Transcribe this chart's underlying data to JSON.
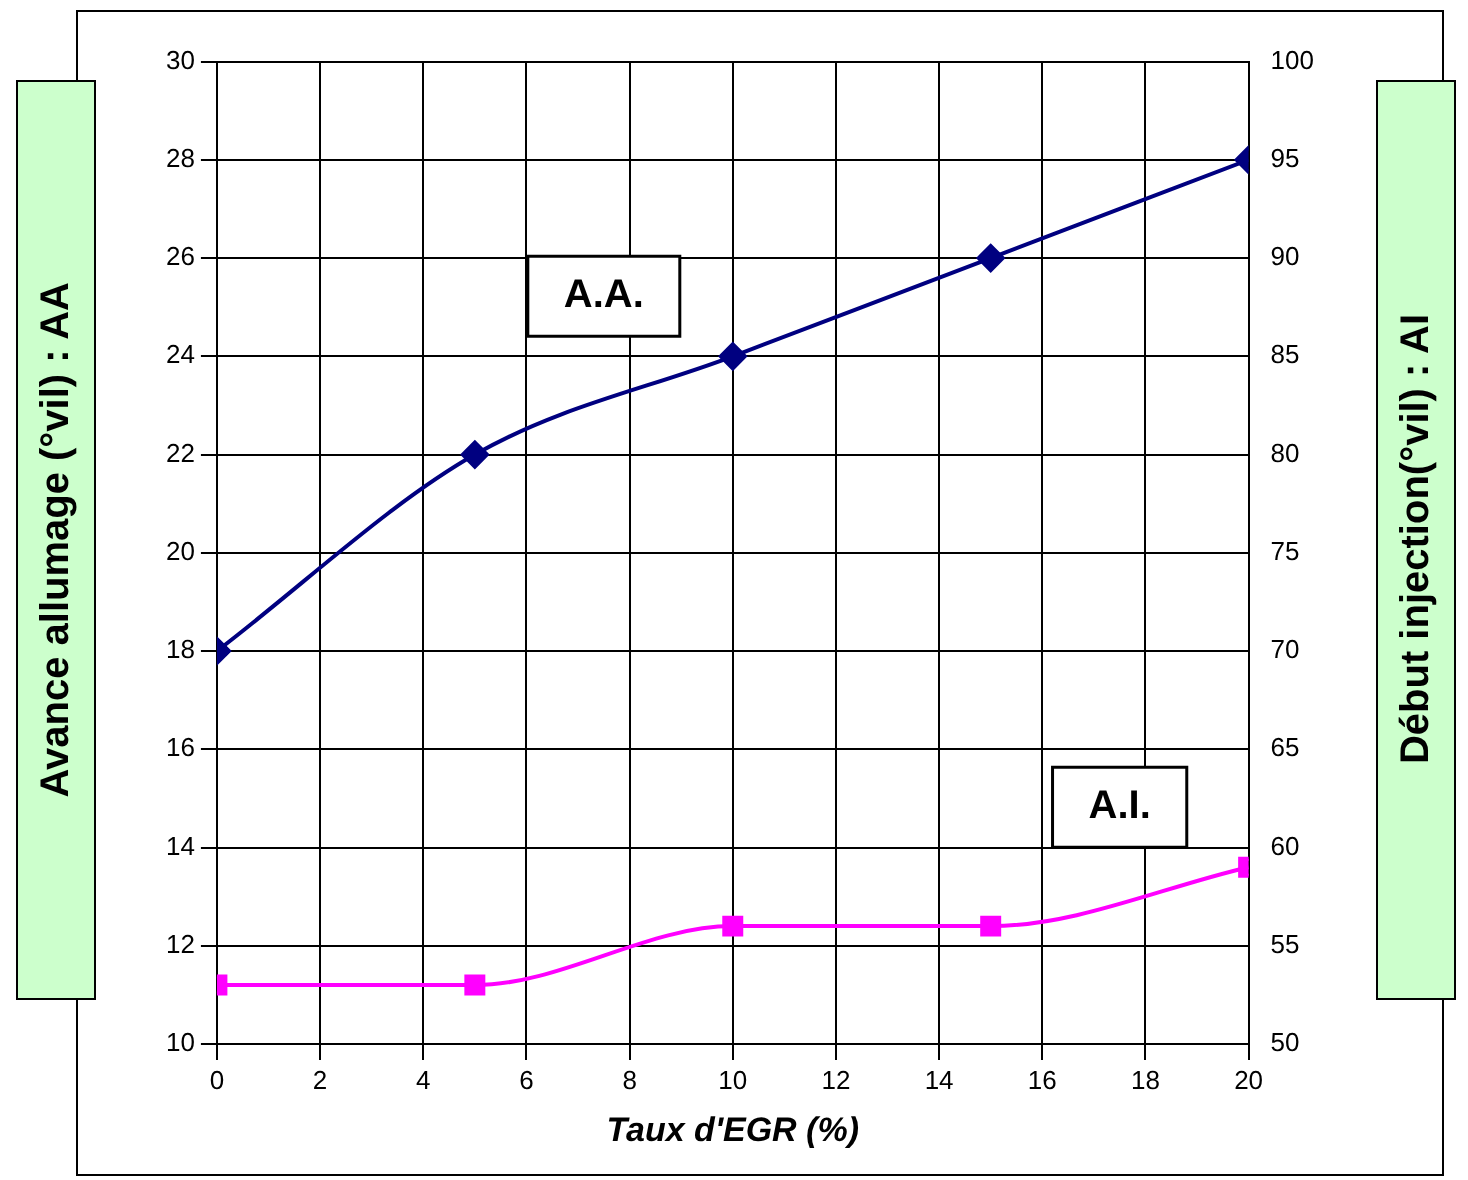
{
  "chart_data": {
    "type": "line",
    "xlabel": "Taux d'EGR (%)",
    "ylabel": "Avance allumage (°vil) : AA",
    "y2label": "Début injection(°vil) : AI",
    "x": [
      0,
      5,
      10,
      15,
      20
    ],
    "series": [
      {
        "name": "A.A.",
        "color": "#000080",
        "values": [
          18,
          22,
          24,
          26,
          28
        ],
        "marker": "diamond"
      },
      {
        "name": "A.I.",
        "color": "#ff00ff",
        "values": [
          53,
          53,
          56,
          56,
          59
        ],
        "axis": "y2",
        "marker": "square"
      }
    ],
    "xlim": [
      0,
      20
    ],
    "xticks": [
      0,
      2,
      4,
      6,
      8,
      10,
      12,
      14,
      16,
      18,
      20
    ],
    "ylim": [
      10,
      30
    ],
    "yticks": [
      10,
      12,
      14,
      16,
      18,
      20,
      22,
      24,
      26,
      28,
      30
    ],
    "y2lim": [
      50,
      100
    ],
    "y2ticks": [
      50,
      55,
      60,
      65,
      70,
      75,
      80,
      85,
      90,
      95,
      100
    ],
    "grid": true,
    "legend": false,
    "line_style": "solid"
  }
}
